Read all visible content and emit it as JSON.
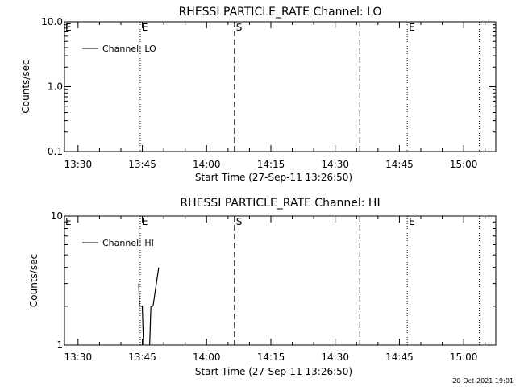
{
  "footer_timestamp": "20-Oct-2021 19:01",
  "chart_data": [
    {
      "type": "line",
      "title": "RHESSI PARTICLE_RATE Channel: LO",
      "xlabel": "Start Time (27-Sep-11 13:26:50)",
      "ylabel": "Counts/sec",
      "y_scale": "log",
      "ylim": [
        0.1,
        10.0
      ],
      "y_ticks": [
        {
          "value": 0.1,
          "label": "0.1"
        },
        {
          "value": 1.0,
          "label": "1.0"
        },
        {
          "value": 10.0,
          "label": "10.0"
        }
      ],
      "xlim": [
        "13:26:50",
        "15:07:30"
      ],
      "x_ticks": [
        "13:30",
        "13:45",
        "14:00",
        "14:15",
        "14:30",
        "14:45",
        "15:00"
      ],
      "legend": {
        "placement": "top-left"
      },
      "series": [
        {
          "name": "Channel: LO",
          "points": []
        }
      ],
      "markers": [
        {
          "time": "13:44:30",
          "style": "dotted",
          "label": "E"
        },
        {
          "time": "14:06:30",
          "style": "dashed",
          "label": "S"
        },
        {
          "time": "14:35:45",
          "style": "dashed",
          "label": ""
        },
        {
          "time": "14:46:50",
          "style": "dotted",
          "label": "E"
        },
        {
          "time": "15:03:40",
          "style": "dotted",
          "label": ""
        }
      ],
      "edge_label": "E"
    },
    {
      "type": "line",
      "title": "RHESSI PARTICLE_RATE Channel: HI",
      "xlabel": "Start Time (27-Sep-11 13:26:50)",
      "ylabel": "Counts/sec",
      "y_scale": "log",
      "ylim": [
        1,
        10
      ],
      "y_ticks": [
        {
          "value": 1,
          "label": "1"
        },
        {
          "value": 10,
          "label": "10"
        }
      ],
      "xlim": [
        "13:26:50",
        "15:07:30"
      ],
      "x_ticks": [
        "13:30",
        "13:45",
        "14:00",
        "14:15",
        "14:30",
        "14:45",
        "15:00"
      ],
      "legend": {
        "placement": "top-left"
      },
      "series": [
        {
          "name": "Channel: HI",
          "points": [
            {
              "t": "13:44:10",
              "y": 3.0
            },
            {
              "t": "13:44:20",
              "y": 2.0
            },
            {
              "t": "13:45:00",
              "y": 2.0
            },
            {
              "t": "13:45:20",
              "y": 0.9
            },
            {
              "t": "13:46:40",
              "y": 0.9
            },
            {
              "t": "13:47:00",
              "y": 2.0
            },
            {
              "t": "13:47:30",
              "y": 2.0
            },
            {
              "t": "13:48:50",
              "y": 4.0
            }
          ]
        }
      ],
      "markers": [
        {
          "time": "13:44:30",
          "style": "dotted",
          "label": "E"
        },
        {
          "time": "14:06:30",
          "style": "dashed",
          "label": "S"
        },
        {
          "time": "14:35:45",
          "style": "dashed",
          "label": ""
        },
        {
          "time": "14:46:50",
          "style": "dotted",
          "label": "E"
        },
        {
          "time": "15:03:40",
          "style": "dotted",
          "label": ""
        }
      ],
      "edge_label": "E"
    }
  ]
}
